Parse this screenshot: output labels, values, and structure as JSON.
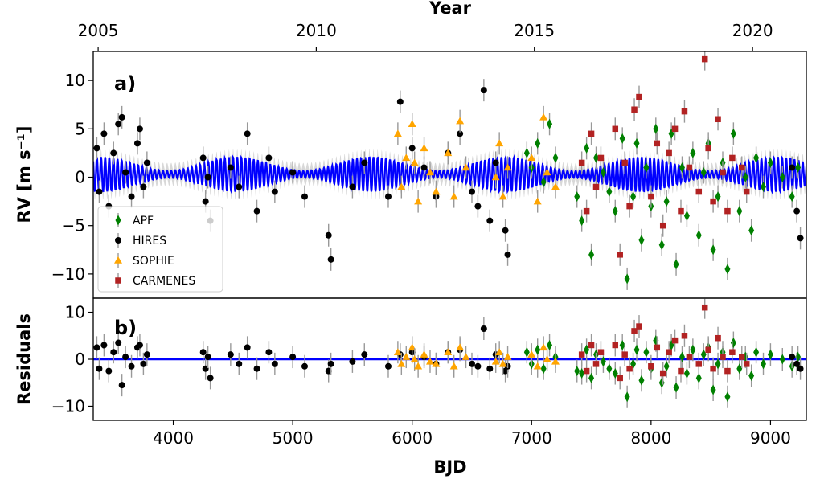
{
  "chart_data": {
    "type": "scatter",
    "top_axis": {
      "label": "Year",
      "ticks": [
        {
          "value": 3371,
          "label": "2005"
        },
        {
          "value": 5197,
          "label": "2010"
        },
        {
          "value": 7023,
          "label": "2015"
        },
        {
          "value": 8850,
          "label": "2020"
        }
      ]
    },
    "xlabel": "BJD",
    "xlim": [
      3330,
      9300
    ],
    "x_ticks": [
      4000,
      5000,
      6000,
      7000,
      8000,
      9000
    ],
    "panels": [
      {
        "tag": "a)",
        "ylabel": "RV [m s⁻¹]",
        "ylim": [
          -12.5,
          13.0
        ],
        "y_ticks": [
          -10,
          -5,
          0,
          5,
          10
        ],
        "model": {
          "name": "model",
          "color": "#0000ff",
          "baseline": 0.3,
          "amplitude": 1.8
        }
      },
      {
        "tag": "b)",
        "ylabel": "Residuals",
        "ylim": [
          -13,
          13
        ],
        "y_ticks": [
          -10,
          0,
          10
        ],
        "model": {
          "name": "zero",
          "color": "#0000ff",
          "baseline": 0,
          "amplitude": 0
        }
      }
    ],
    "series": [
      {
        "name": "APF",
        "marker": "diamond",
        "color": "#008000",
        "x": [
          6960,
          7000,
          7050,
          7100,
          7150,
          7200,
          7380,
          7420,
          7460,
          7500,
          7540,
          7600,
          7650,
          7700,
          7760,
          7800,
          7850,
          7880,
          7920,
          7960,
          8000,
          8040,
          8090,
          8130,
          8170,
          8210,
          8260,
          8300,
          8350,
          8400,
          8440,
          8480,
          8520,
          8560,
          8600,
          8640,
          8690,
          8740,
          8790,
          8840,
          8880,
          8940,
          9000,
          9100,
          9180,
          9230
        ],
        "rv": [
          2.5,
          1.0,
          3.5,
          -0.5,
          5.5,
          2.0,
          -2.0,
          -4.5,
          3.0,
          -8.0,
          2.0,
          0.5,
          -1.5,
          -3.5,
          4.0,
          -10.5,
          -2.0,
          3.5,
          -6.5,
          1.0,
          -3.0,
          5.0,
          -7.0,
          -2.5,
          4.5,
          -9.0,
          1.0,
          -4.0,
          2.5,
          -6.0,
          0.5,
          3.5,
          -7.5,
          -2.0,
          1.5,
          -9.5,
          4.5,
          -3.5,
          0.0,
          -5.5,
          2.0,
          -1.0,
          1.5,
          0.0,
          -2.0,
          1.0
        ],
        "res": [
          1.5,
          -1.0,
          2.0,
          -2.0,
          3.0,
          0.5,
          -2.5,
          -3.0,
          2.0,
          -4.0,
          1.0,
          -0.5,
          -2.0,
          -3.0,
          3.0,
          -8.0,
          -1.0,
          2.0,
          -4.5,
          1.5,
          -2.0,
          4.0,
          -5.0,
          -1.5,
          3.0,
          -6.0,
          0.5,
          -3.0,
          2.0,
          -4.0,
          1.0,
          2.5,
          -6.5,
          -1.0,
          1.5,
          -8.0,
          3.5,
          -2.0,
          0.5,
          -3.5,
          1.5,
          -1.0,
          1.0,
          0.0,
          -1.5,
          0.5
        ]
      },
      {
        "name": "HIRES",
        "marker": "circle",
        "color": "#000000",
        "x": [
          3360,
          3380,
          3420,
          3460,
          3500,
          3540,
          3570,
          3600,
          3650,
          3700,
          3720,
          3750,
          3780,
          4250,
          4270,
          4290,
          4310,
          4480,
          4550,
          4620,
          4700,
          4800,
          4850,
          5000,
          5100,
          5300,
          5320,
          5500,
          5600,
          5800,
          5900,
          6000,
          6100,
          6200,
          6300,
          6400,
          6500,
          6550,
          6600,
          6650,
          6700,
          6780,
          6800,
          9180,
          9220,
          9250
        ],
        "rv": [
          3.0,
          -1.5,
          4.5,
          -3.0,
          2.5,
          5.5,
          6.2,
          0.5,
          -2.0,
          3.5,
          5.0,
          -1.0,
          1.5,
          2.0,
          -2.5,
          0.0,
          -4.5,
          1.0,
          -1.0,
          4.5,
          -3.5,
          2.0,
          -1.5,
          0.5,
          -2.0,
          -6.0,
          -8.5,
          -1.0,
          1.5,
          -2.0,
          7.8,
          3.0,
          1.0,
          -2.0,
          2.5,
          4.5,
          -1.5,
          -3.0,
          9.0,
          -4.5,
          1.5,
          -5.5,
          -8.0,
          1.0,
          -3.5,
          -6.3
        ],
        "res": [
          2.5,
          -2.0,
          3.0,
          -2.5,
          1.5,
          3.5,
          -5.5,
          0.5,
          -1.5,
          2.5,
          3.0,
          -1.0,
          1.0,
          1.5,
          -2.0,
          0.5,
          -4.0,
          1.0,
          -1.0,
          2.5,
          -2.0,
          1.5,
          -1.0,
          0.5,
          -1.5,
          -2.5,
          -1.0,
          -0.5,
          1.0,
          -1.5,
          1.0,
          1.5,
          0.5,
          -1.0,
          1.5,
          2.0,
          -1.0,
          -1.5,
          6.5,
          -2.0,
          1.0,
          -2.5,
          -1.5,
          0.5,
          -1.0,
          -2.0
        ]
      },
      {
        "name": "SOPHIE",
        "marker": "triangle",
        "color": "#ffa500",
        "x": [
          5880,
          5910,
          5950,
          6000,
          6020,
          6050,
          6100,
          6150,
          6200,
          6300,
          6350,
          6400,
          6450,
          6700,
          6730,
          6760,
          6800,
          7000,
          7050,
          7100,
          7130,
          7200
        ],
        "rv": [
          4.5,
          -1.0,
          2.0,
          5.5,
          1.5,
          -2.5,
          3.0,
          0.5,
          -1.5,
          2.5,
          -2.0,
          5.8,
          1.0,
          0.0,
          3.5,
          -2.0,
          1.0,
          2.0,
          -2.5,
          6.2,
          0.5,
          -1.0
        ],
        "res": [
          1.5,
          -1.0,
          0.5,
          2.5,
          0.0,
          -1.5,
          1.0,
          -0.5,
          -1.0,
          1.5,
          -1.5,
          2.5,
          0.5,
          -0.5,
          1.5,
          -1.0,
          0.5,
          1.0,
          -1.5,
          2.5,
          0.0,
          -0.5
        ]
      },
      {
        "name": "CARMENES",
        "marker": "square",
        "color": "#b22222",
        "x": [
          7420,
          7460,
          7500,
          7540,
          7580,
          7700,
          7740,
          7780,
          7820,
          7860,
          7900,
          8000,
          8050,
          8100,
          8150,
          8200,
          8250,
          8280,
          8320,
          8400,
          8450,
          8480,
          8520,
          8560,
          8600,
          8640,
          8680,
          8760,
          8800
        ],
        "rv": [
          1.5,
          -3.5,
          4.5,
          -1.0,
          2.0,
          5.0,
          -8.0,
          1.5,
          -3.0,
          7.0,
          8.3,
          -2.0,
          3.5,
          -5.0,
          2.5,
          5.0,
          -3.5,
          6.8,
          1.0,
          -1.5,
          12.2,
          3.0,
          -2.5,
          6.0,
          0.5,
          -3.5,
          2.0,
          1.0,
          -1.5
        ],
        "res": [
          1.0,
          -2.5,
          3.0,
          -1.0,
          1.5,
          3.0,
          -4.0,
          1.0,
          -2.0,
          6.0,
          7.0,
          -1.5,
          2.5,
          -3.0,
          1.5,
          4.0,
          -2.5,
          5.0,
          0.5,
          -1.0,
          11.0,
          2.0,
          -2.0,
          4.5,
          0.5,
          -2.5,
          1.5,
          0.5,
          -1.0
        ]
      }
    ],
    "legend": {
      "location": "lower-left"
    },
    "errorbar_color": "#999999"
  }
}
